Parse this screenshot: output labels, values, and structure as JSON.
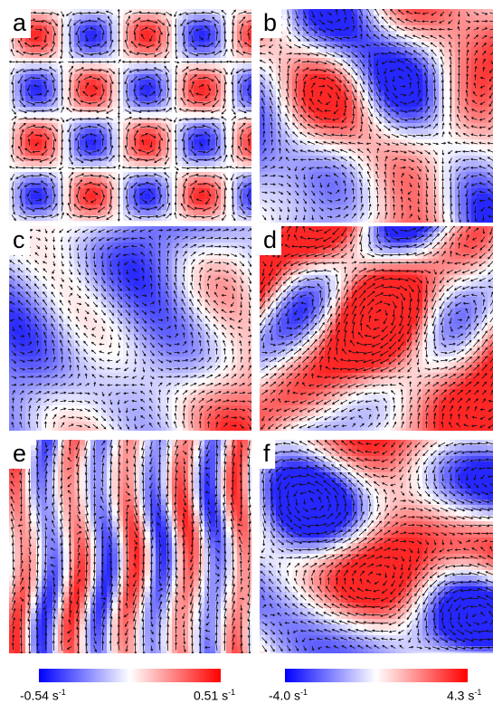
{
  "panels": [
    {
      "label": "a",
      "pattern": "square-lattice"
    },
    {
      "label": "b",
      "pattern": "turbulent"
    },
    {
      "label": "c",
      "pattern": "turbulent"
    },
    {
      "label": "d",
      "pattern": "turbulent"
    },
    {
      "label": "e",
      "pattern": "stripes"
    },
    {
      "label": "f",
      "pattern": "turbulent"
    }
  ],
  "colorbars": [
    {
      "min_label": "-0.54 s",
      "max_label": "0.51 s",
      "unit_exponent": "-1",
      "colors": {
        "min": "#0000ff",
        "mid": "#ffffff",
        "max": "#ff0000"
      }
    },
    {
      "min_label": "-4.0 s",
      "max_label": "4.3 s",
      "unit_exponent": "-1",
      "colors": {
        "min": "#0000ff",
        "mid": "#ffffff",
        "max": "#ff0000"
      }
    }
  ]
}
